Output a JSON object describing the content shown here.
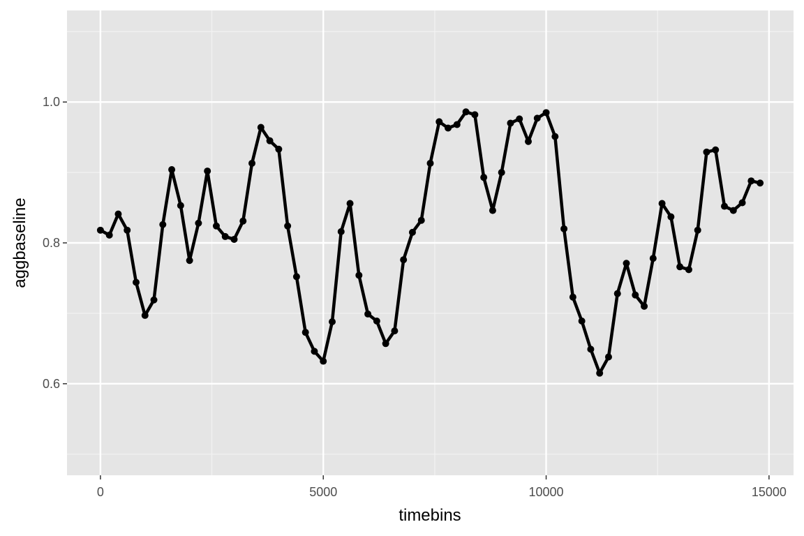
{
  "chart_data": {
    "type": "line",
    "xlabel": "timebins",
    "ylabel": "aggbaseline",
    "xlim": [
      -750,
      15550
    ],
    "ylim": [
      0.47,
      1.13
    ],
    "x_ticks": [
      0,
      5000,
      10000,
      15000
    ],
    "x_tick_labels": [
      "0",
      "5000",
      "10000",
      "15000"
    ],
    "y_ticks": [
      0.6,
      0.8,
      1.0
    ],
    "y_tick_labels": [
      "0.6",
      "0.8",
      "1.0"
    ],
    "y_minor_ticks": [
      0.5,
      0.7,
      0.9,
      1.1
    ],
    "x_minor_ticks": [
      2500,
      7500,
      12500
    ],
    "grid": true,
    "panel_background": "#e5e5e5",
    "line_color": "#000000",
    "series": [
      {
        "x": [
          0,
          200,
          400,
          600,
          800,
          1000,
          1200,
          1400,
          1600,
          1800,
          2000,
          2200,
          2400,
          2600,
          2800,
          3000,
          3200,
          3400,
          3600,
          3800,
          4000,
          4200,
          4400,
          4600,
          4800,
          5000,
          5200,
          5400,
          5600,
          5800,
          6000,
          6200,
          6400,
          6600,
          6800,
          7000,
          7200,
          7400,
          7600,
          7800,
          8000,
          8200,
          8400,
          8600,
          8800,
          9000,
          9200,
          9400,
          9600,
          9800,
          10000,
          10200,
          10400,
          10600,
          10800,
          11000,
          11200,
          11400,
          11600,
          11800,
          12000,
          12200,
          12400,
          12600,
          12800,
          13000,
          13200,
          13400,
          13600,
          13800,
          14000,
          14200,
          14400,
          14600,
          14800
        ],
        "y": [
          0.818,
          0.811,
          0.841,
          0.818,
          0.744,
          0.697,
          0.719,
          0.826,
          0.904,
          0.853,
          0.775,
          0.828,
          0.902,
          0.824,
          0.809,
          0.805,
          0.831,
          0.913,
          0.964,
          0.945,
          0.933,
          0.824,
          0.752,
          0.673,
          0.646,
          0.632,
          0.688,
          0.816,
          0.856,
          0.754,
          0.699,
          0.689,
          0.657,
          0.675,
          0.776,
          0.815,
          0.832,
          0.913,
          0.972,
          0.963,
          0.968,
          0.986,
          0.982,
          0.893,
          0.846,
          0.9,
          0.97,
          0.976,
          0.944,
          0.977,
          0.985,
          0.951,
          0.82,
          0.723,
          0.689,
          0.649,
          0.615,
          0.638,
          0.728,
          0.771,
          0.726,
          0.71,
          0.778,
          0.856,
          0.837,
          0.766,
          0.762,
          0.818,
          0.929,
          0.932,
          0.852,
          0.846,
          0.857,
          0.888,
          0.885
        ]
      }
    ]
  }
}
